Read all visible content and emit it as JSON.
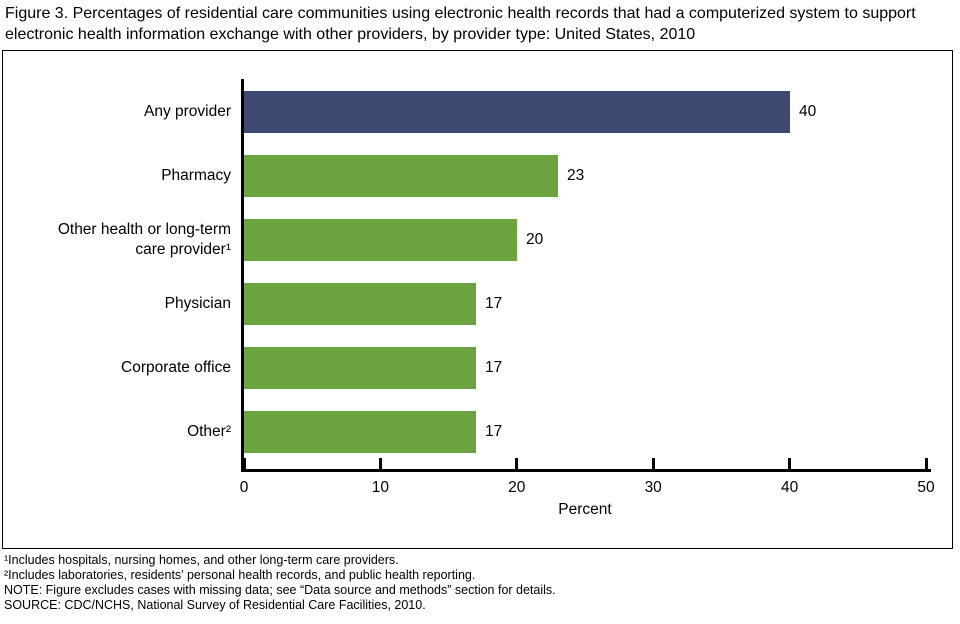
{
  "title": "Figure 3. Percentages of residential care communities using electronic health records that had a computerized system to support electronic health information exchange with other providers, by provider type: United States, 2010",
  "chart_data": {
    "type": "bar",
    "orientation": "horizontal",
    "categories": [
      "Any provider",
      "Pharmacy",
      "Other health or long-term care provider¹",
      "Physician",
      "Corporate office",
      "Other²"
    ],
    "values": [
      40,
      23,
      20,
      17,
      17,
      17
    ],
    "value_labels": [
      "40",
      "23",
      "20",
      "17",
      "17",
      "17"
    ],
    "bar_colors": [
      "#3F4A72",
      "#6BA43E",
      "#6BA43E",
      "#6BA43E",
      "#6BA43E",
      "#6BA43E"
    ],
    "xlabel": "Percent",
    "ylabel": "",
    "xlim": [
      0,
      50
    ],
    "x_ticks": [
      0,
      10,
      20,
      30,
      40,
      50
    ],
    "grid": false,
    "legend": "none",
    "axis_color": "#000000",
    "background_color": "#FFFFFF"
  },
  "footnotes": [
    "¹Includes hospitals, nursing homes, and other long-term care providers.",
    "²Includes laboratories, residents’ personal health records, and public health reporting.",
    "NOTE: Figure excludes cases with missing data; see “Data source and methods” section for details.",
    "SOURCE: CDC/NCHS, National Survey of Residential Care Facilities, 2010."
  ]
}
